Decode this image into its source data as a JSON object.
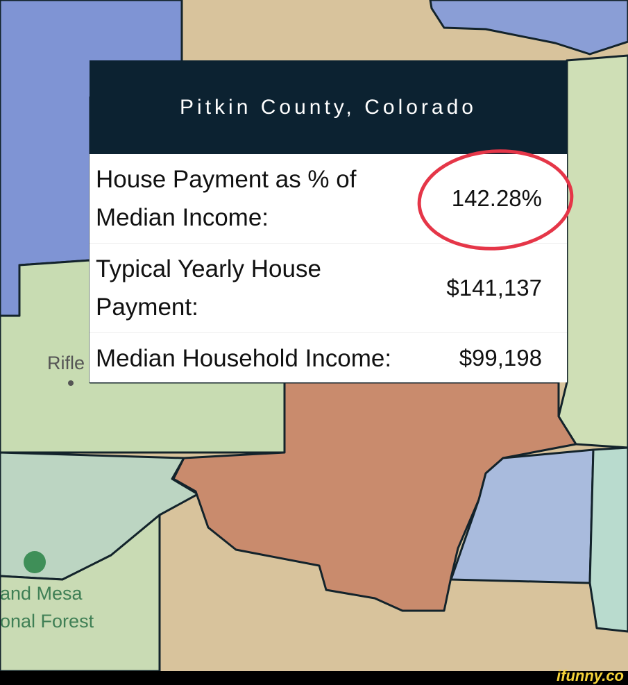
{
  "popup": {
    "title": "Pitkin County, Colorado",
    "rows": [
      {
        "label": "House Payment as % of Median Income:",
        "value": "142.28%"
      },
      {
        "label": "Typical Yearly House Payment:",
        "value": "$141,137"
      },
      {
        "label": "Median Household Income:",
        "value": "$99,198"
      }
    ]
  },
  "map_labels": {
    "town": "Rifle",
    "forest_line1": "and Mesa",
    "forest_line2": "onal Forest"
  },
  "watermark": "ifunny.co"
}
